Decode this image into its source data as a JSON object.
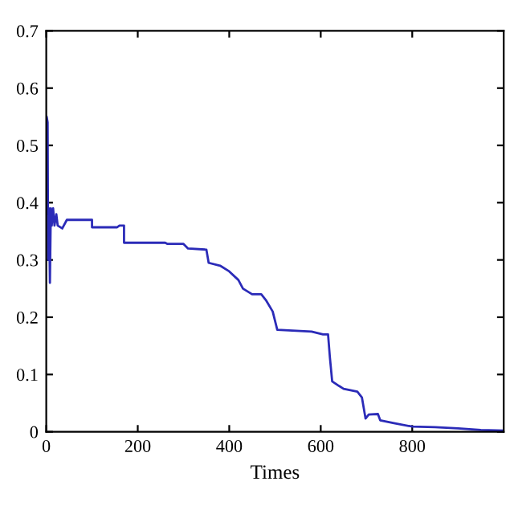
{
  "chart_data": {
    "type": "line",
    "xlabel": "Times",
    "xlim": [
      0,
      1000
    ],
    "xticks": [
      0,
      200,
      400,
      600,
      800
    ],
    "ylim": [
      0,
      0.7
    ],
    "yticks": [
      0,
      0.1,
      0.2,
      0.3,
      0.4,
      0.5,
      0.6,
      0.7
    ],
    "grid": false,
    "legend": false,
    "series": [
      {
        "color": "#2b2bb8",
        "x": [
          0,
          1,
          3,
          4,
          6,
          8,
          10,
          12,
          15,
          18,
          22,
          25,
          35,
          45,
          100,
          100,
          155,
          160,
          170,
          170,
          260,
          265,
          300,
          310,
          350,
          355,
          380,
          400,
          420,
          430,
          450,
          470,
          480,
          495,
          505,
          580,
          605,
          616,
          620,
          625,
          640,
          650,
          680,
          690,
          698,
          705,
          725,
          730,
          760,
          800,
          850,
          900,
          950,
          1000
        ],
        "values": [
          0.38,
          0.55,
          0.54,
          0.3,
          0.39,
          0.26,
          0.39,
          0.36,
          0.39,
          0.36,
          0.38,
          0.36,
          0.355,
          0.37,
          0.37,
          0.357,
          0.357,
          0.36,
          0.36,
          0.33,
          0.33,
          0.328,
          0.328,
          0.32,
          0.318,
          0.295,
          0.29,
          0.28,
          0.265,
          0.25,
          0.24,
          0.24,
          0.23,
          0.21,
          0.178,
          0.175,
          0.17,
          0.17,
          0.13,
          0.088,
          0.08,
          0.075,
          0.07,
          0.06,
          0.023,
          0.03,
          0.031,
          0.02,
          0.015,
          0.009,
          0.008,
          0.006,
          0.003,
          0.002
        ]
      }
    ]
  }
}
